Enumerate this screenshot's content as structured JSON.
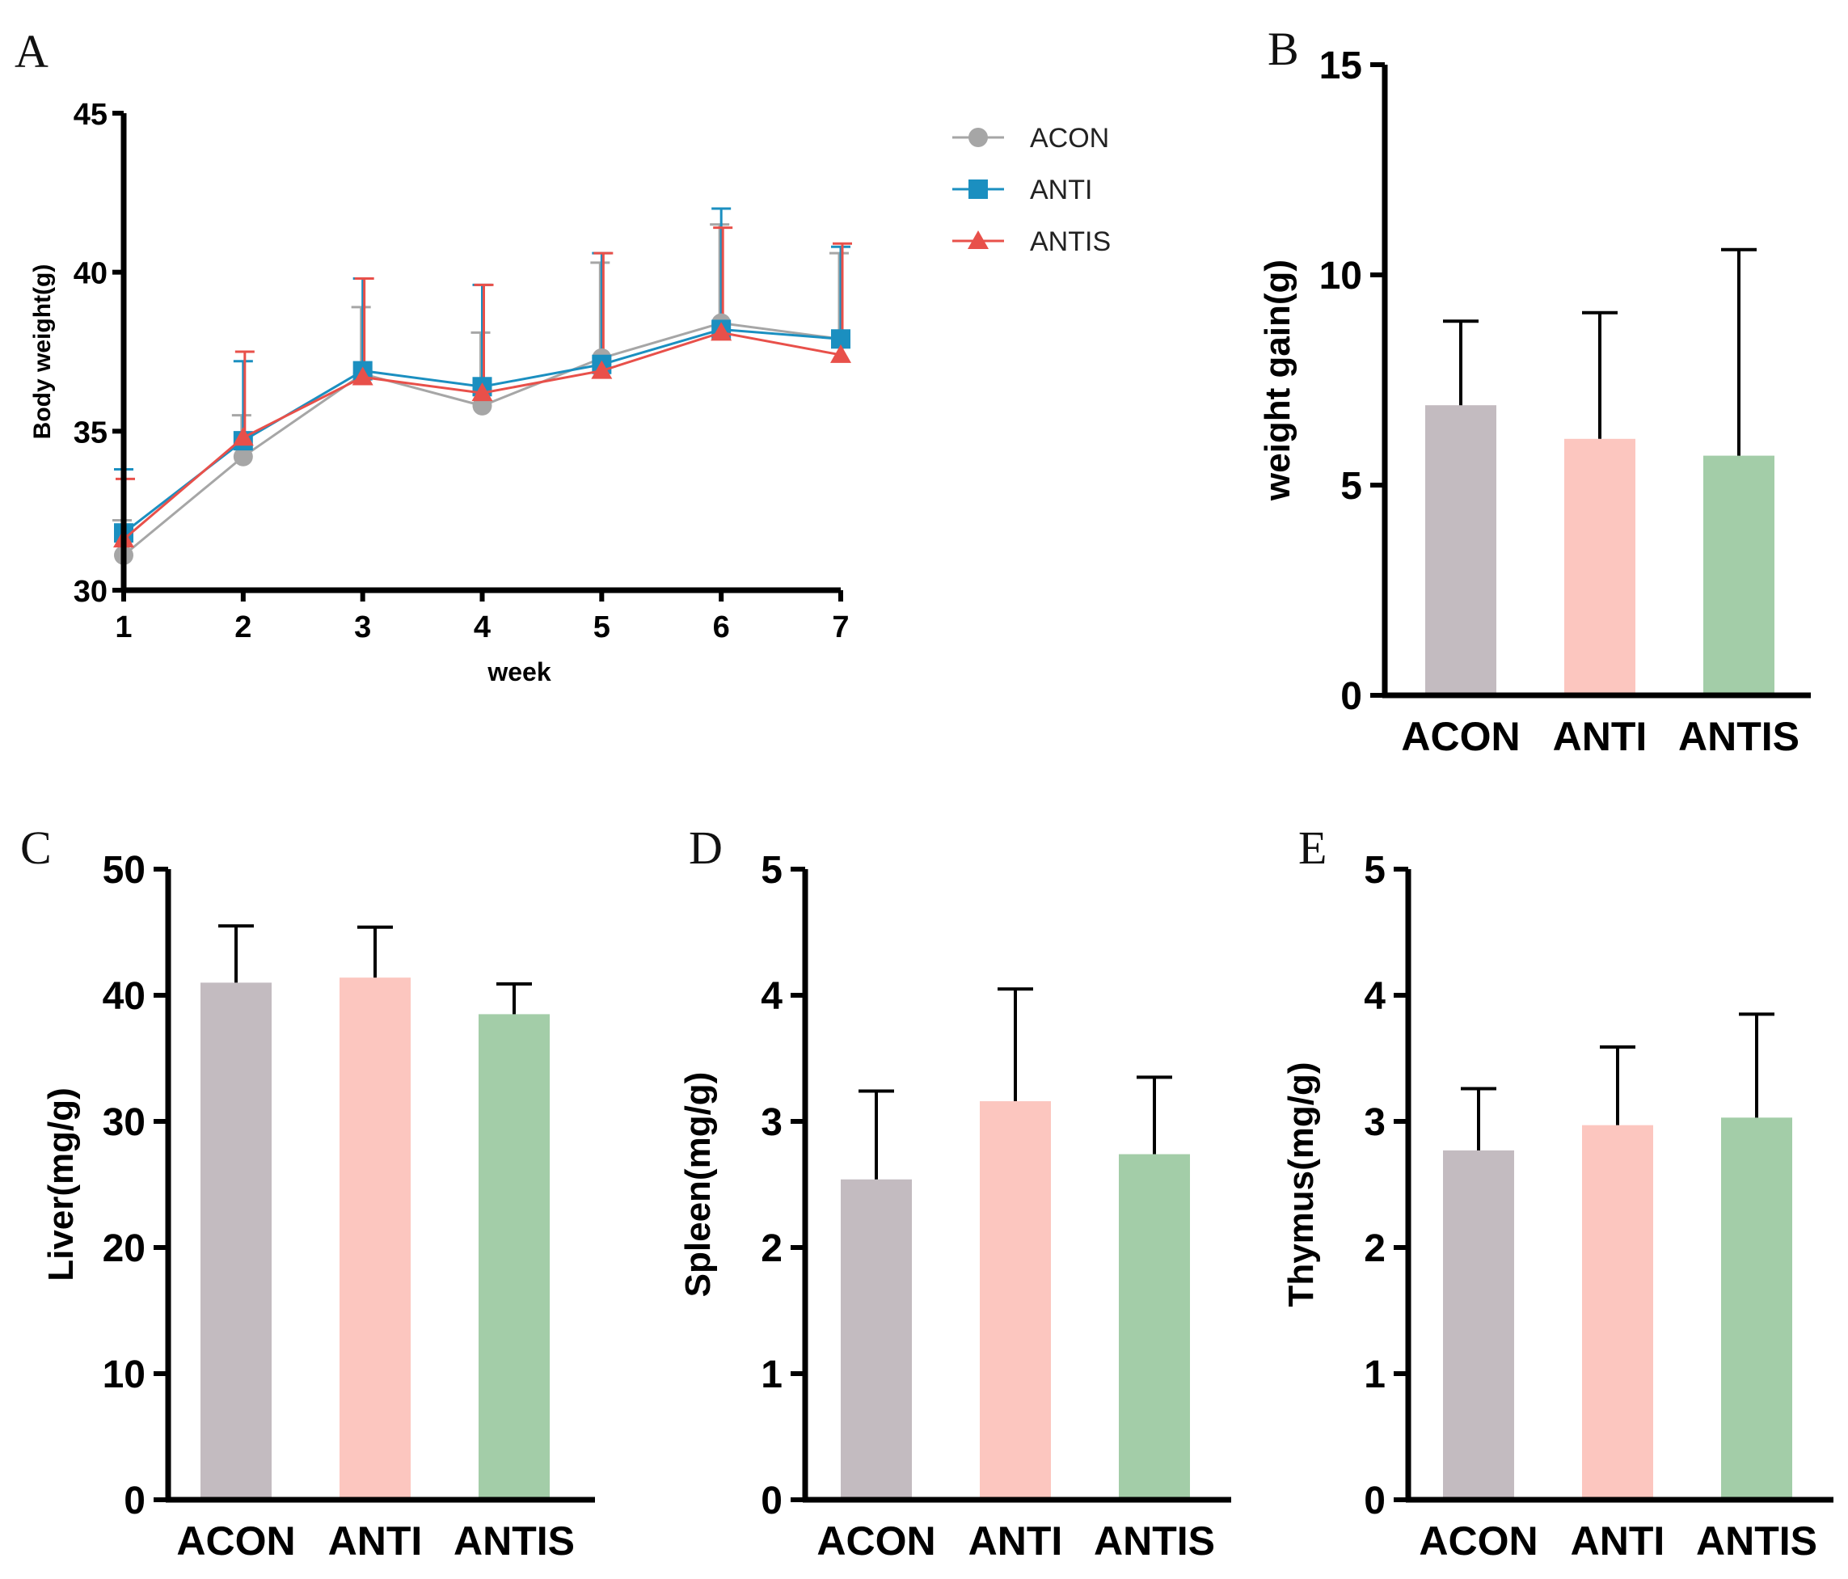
{
  "chart_data": [
    {
      "id": "A",
      "panel_label": "A",
      "type": "line",
      "xlabel": "week",
      "ylabel": "Body weight(g)",
      "x": [
        1,
        2,
        3,
        4,
        5,
        6,
        7
      ],
      "x_tick_labels": [
        "1",
        "2",
        "3",
        "4",
        "5",
        "6",
        "7"
      ],
      "xlim": [
        1,
        7
      ],
      "ylim": [
        30,
        45
      ],
      "y_ticks": [
        30,
        35,
        40,
        45
      ],
      "y_tick_labels": [
        "30",
        "35",
        "40",
        "45"
      ],
      "legend_position": "top-right",
      "series": [
        {
          "name": "ACON",
          "marker": "circle",
          "color": "#a6a6a6",
          "values": [
            31.1,
            34.2,
            36.8,
            35.8,
            37.3,
            38.4,
            37.9
          ],
          "errors": [
            1.1,
            1.3,
            2.1,
            2.3,
            3.0,
            3.1,
            2.7
          ]
        },
        {
          "name": "ANTI",
          "marker": "square",
          "color": "#1b8fc0",
          "values": [
            31.8,
            34.7,
            36.9,
            36.4,
            37.1,
            38.2,
            37.9
          ],
          "errors": [
            2.0,
            2.5,
            2.9,
            3.2,
            3.5,
            3.8,
            2.9
          ]
        },
        {
          "name": "ANTIS",
          "marker": "triangle",
          "color": "#e8504a",
          "values": [
            31.6,
            34.8,
            36.7,
            36.2,
            36.9,
            38.1,
            37.4
          ],
          "errors": [
            1.9,
            2.7,
            3.1,
            3.4,
            3.7,
            3.3,
            3.5
          ]
        }
      ]
    },
    {
      "id": "B",
      "panel_label": "B",
      "type": "bar",
      "xlabel": "",
      "ylabel": "weight gain(g)",
      "categories": [
        "ACON",
        "ANTI",
        "ANTIS"
      ],
      "values": [
        6.9,
        6.1,
        5.7
      ],
      "errors": [
        2.0,
        3.0,
        4.9
      ],
      "colors": [
        "#c3bbc0",
        "#fcc6bf",
        "#a3cda8"
      ],
      "ylim": [
        0,
        15
      ],
      "y_ticks": [
        0,
        5,
        10,
        15
      ],
      "y_tick_labels": [
        "0",
        "5",
        "10",
        "15"
      ]
    },
    {
      "id": "C",
      "panel_label": "C",
      "type": "bar",
      "xlabel": "",
      "ylabel": "Liver(mg/g)",
      "categories": [
        "ACON",
        "ANTI",
        "ANTIS"
      ],
      "values": [
        41.0,
        41.4,
        38.5
      ],
      "errors": [
        4.5,
        4.0,
        2.4
      ],
      "colors": [
        "#c3bbc0",
        "#fcc6bf",
        "#a3cda8"
      ],
      "ylim": [
        0,
        50
      ],
      "y_ticks": [
        0,
        10,
        20,
        30,
        40,
        50
      ],
      "y_tick_labels": [
        "0",
        "10",
        "20",
        "30",
        "40",
        "50"
      ]
    },
    {
      "id": "D",
      "panel_label": "D",
      "type": "bar",
      "xlabel": "",
      "ylabel": "Spleen(mg/g)",
      "categories": [
        "ACON",
        "ANTI",
        "ANTIS"
      ],
      "values": [
        2.54,
        3.16,
        2.74
      ],
      "errors": [
        0.7,
        0.89,
        0.61
      ],
      "colors": [
        "#c3bbc0",
        "#fcc6bf",
        "#a3cda8"
      ],
      "ylim": [
        0,
        5
      ],
      "y_ticks": [
        0,
        1,
        2,
        3,
        4,
        5
      ],
      "y_tick_labels": [
        "0",
        "1",
        "2",
        "3",
        "4",
        "5"
      ]
    },
    {
      "id": "E",
      "panel_label": "E",
      "type": "bar",
      "xlabel": "",
      "ylabel": "Thymus(mg/g)",
      "categories": [
        "ACON",
        "ANTI",
        "ANTIS"
      ],
      "values": [
        2.77,
        2.97,
        3.03
      ],
      "errors": [
        0.49,
        0.62,
        0.82
      ],
      "colors": [
        "#c3bbc0",
        "#fcc6bf",
        "#a3cda8"
      ],
      "ylim": [
        0,
        5
      ],
      "y_ticks": [
        0,
        1,
        2,
        3,
        4,
        5
      ],
      "y_tick_labels": [
        "0",
        "1",
        "2",
        "3",
        "4",
        "5"
      ]
    }
  ]
}
